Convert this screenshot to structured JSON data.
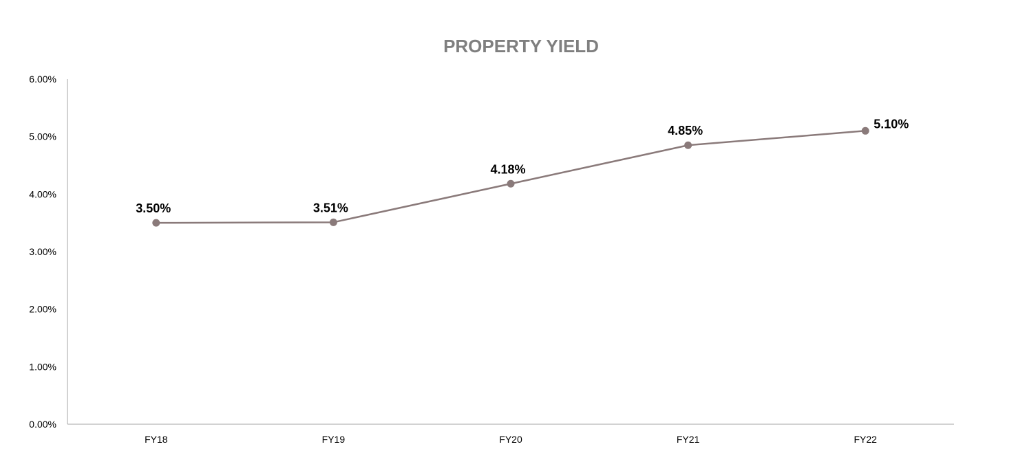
{
  "chart_data": {
    "type": "line",
    "title": "PROPERTY YIELD",
    "xlabel": "",
    "ylabel": "",
    "categories": [
      "FY18",
      "FY19",
      "FY20",
      "FY21",
      "FY22"
    ],
    "series": [
      {
        "values": [
          3.5,
          3.51,
          4.18,
          4.85,
          5.1
        ],
        "data_labels": [
          "3.50%",
          "3.51%",
          "4.18%",
          "4.85%",
          "5.10%"
        ],
        "color": "#8a7a7a"
      }
    ],
    "ylim": [
      0,
      6
    ],
    "y_ticks": [
      0,
      1,
      2,
      3,
      4,
      5,
      6
    ],
    "y_tick_labels": [
      "0.00%",
      "1.00%",
      "2.00%",
      "3.00%",
      "4.00%",
      "5.00%",
      "6.00%"
    ],
    "grid": false,
    "legend": "none",
    "title_color": "#7f7f7f",
    "axis_color": "#a6a6a6"
  }
}
